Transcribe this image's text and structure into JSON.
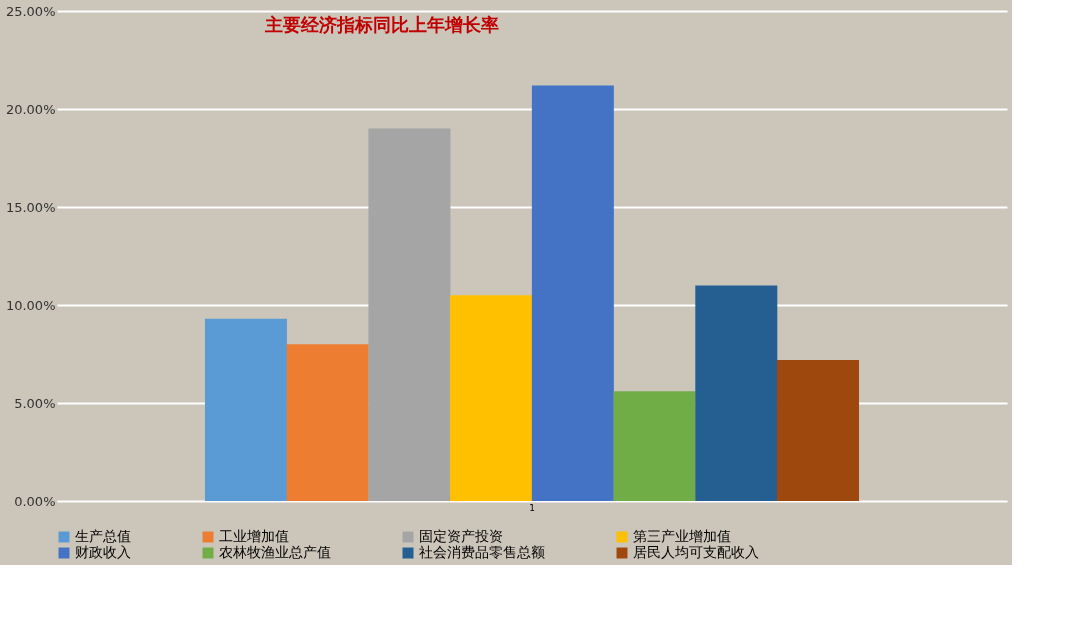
{
  "chart_data": {
    "type": "bar",
    "title": "主要经济指标同比上年增长率",
    "categories": [
      "1"
    ],
    "series": [
      {
        "name": "生产总值",
        "color": "#5b9bd5",
        "values": [
          9.3
        ]
      },
      {
        "name": "工业增加值",
        "color": "#ed7d31",
        "values": [
          8.0
        ]
      },
      {
        "name": "固定资产投资",
        "color": "#a5a5a5",
        "values": [
          19.0
        ]
      },
      {
        "name": "第三产业增加值",
        "color": "#ffc000",
        "values": [
          10.5
        ]
      },
      {
        "name": "财政收入",
        "color": "#4472c4",
        "values": [
          21.2
        ]
      },
      {
        "name": "农林牧渔业总产值",
        "color": "#70ad47",
        "values": [
          5.6
        ]
      },
      {
        "name": "社会消费品零售总额",
        "color": "#255e91",
        "values": [
          11.0
        ]
      },
      {
        "name": "居民人均可支配收入",
        "color": "#9e480e",
        "values": [
          7.2
        ]
      }
    ],
    "ylim": [
      0,
      25
    ],
    "yticks": [
      {
        "value": 0,
        "label": "0.00%"
      },
      {
        "value": 5,
        "label": "5.00%"
      },
      {
        "value": 10,
        "label": "10.00%"
      },
      {
        "value": 15,
        "label": "15.00%"
      },
      {
        "value": 20,
        "label": "20.00%"
      },
      {
        "value": 25,
        "label": "25.00%"
      }
    ],
    "grid": "y",
    "legend": "bottom"
  }
}
